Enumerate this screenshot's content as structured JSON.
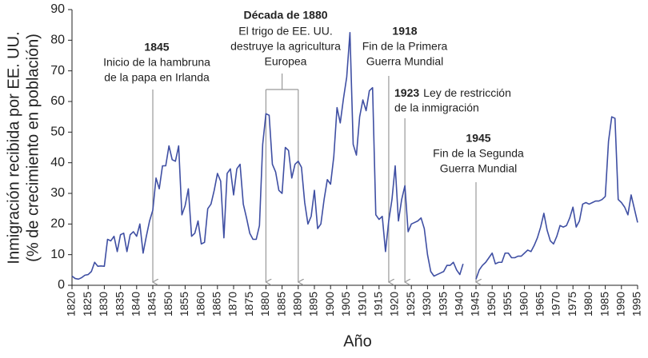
{
  "chart_data": {
    "type": "line",
    "y_label": [
      "Inmigración recibida por EE. UU.",
      "(% de crecimiento en población)"
    ],
    "x_label": "Año",
    "x": [
      1820,
      1821,
      1822,
      1823,
      1824,
      1825,
      1826,
      1827,
      1828,
      1829,
      1830,
      1831,
      1832,
      1833,
      1834,
      1835,
      1836,
      1837,
      1838,
      1839,
      1840,
      1841,
      1842,
      1843,
      1844,
      1845,
      1846,
      1847,
      1848,
      1849,
      1850,
      1851,
      1852,
      1853,
      1854,
      1855,
      1856,
      1857,
      1858,
      1859,
      1860,
      1861,
      1862,
      1863,
      1864,
      1865,
      1866,
      1867,
      1868,
      1869,
      1870,
      1871,
      1872,
      1873,
      1874,
      1875,
      1876,
      1877,
      1878,
      1879,
      1880,
      1881,
      1882,
      1883,
      1884,
      1885,
      1886,
      1887,
      1888,
      1889,
      1890,
      1891,
      1892,
      1893,
      1894,
      1895,
      1896,
      1897,
      1898,
      1899,
      1900,
      1901,
      1902,
      1903,
      1904,
      1905,
      1906,
      1907,
      1908,
      1909,
      1910,
      1911,
      1912,
      1913,
      1914,
      1915,
      1916,
      1917,
      1918,
      1919,
      1920,
      1921,
      1922,
      1923,
      1924,
      1925,
      1926,
      1927,
      1928,
      1929,
      1930,
      1931,
      1932,
      1933,
      1934,
      1935,
      1936,
      1937,
      1938,
      1939,
      1940,
      1941,
      1942,
      1943,
      1944,
      1945,
      1946,
      1947,
      1948,
      1949,
      1950,
      1951,
      1952,
      1953,
      1954,
      1955,
      1956,
      1957,
      1958,
      1959,
      1960,
      1961,
      1962,
      1963,
      1964,
      1965,
      1966,
      1967,
      1968,
      1969,
      1970,
      1971,
      1972,
      1973,
      1974,
      1975,
      1976,
      1977,
      1978,
      1979,
      1980,
      1981,
      1982,
      1983,
      1984,
      1985,
      1986,
      1987,
      1988,
      1989,
      1990,
      1991,
      1992,
      1993,
      1994,
      1995
    ],
    "values": [
      3,
      2.2,
      2,
      2.5,
      3.3,
      3.5,
      4.5,
      7.5,
      6.2,
      6.3,
      6.2,
      15,
      14.5,
      16,
      11,
      16.5,
      17,
      11,
      16.5,
      17.5,
      16,
      20,
      10.5,
      16,
      21,
      24.5,
      35,
      31.5,
      39,
      39,
      45.5,
      41,
      40.5,
      45.5,
      23,
      26,
      31.5,
      16,
      17,
      21,
      13.5,
      14,
      25,
      26.5,
      31,
      36.5,
      34,
      15.5,
      36.5,
      38,
      29.5,
      38,
      39.5,
      26.5,
      22,
      17,
      15,
      15,
      19.5,
      46,
      56,
      55.5,
      39.5,
      37,
      31,
      30,
      45,
      44,
      35,
      39.5,
      40.5,
      38.5,
      27,
      20,
      22.5,
      31,
      18.5,
      20,
      28,
      34.5,
      33,
      42,
      58,
      53,
      61,
      68,
      82.5,
      46,
      42.5,
      55,
      60.5,
      57,
      63.5,
      64.5,
      23,
      21.5,
      22.5,
      11,
      21,
      28,
      39,
      21,
      28,
      32.5,
      17.5,
      20,
      20.5,
      21,
      22,
      18.5,
      10,
      4.5,
      3,
      3.5,
      4,
      4.5,
      6.5,
      6.5,
      7.5,
      5,
      3.5,
      7,
      null,
      null,
      null,
      2,
      5,
      6.5,
      7.5,
      9,
      10.5,
      7,
      7.5,
      7.5,
      10.5,
      10.5,
      9,
      9,
      9.5,
      9.5,
      10.5,
      11.5,
      11,
      13,
      15.5,
      19,
      23.5,
      18,
      14.5,
      13.5,
      16,
      19.5,
      19,
      19.5,
      22,
      25.5,
      19,
      21,
      26.5,
      27,
      26.5,
      27,
      27.5,
      27.5,
      28,
      29,
      47,
      55,
      54.5,
      28,
      27,
      25.5,
      23,
      29.5,
      25,
      20.5
    ],
    "color": "#3f4fa3",
    "xlim": [
      1820,
      1995
    ],
    "xticks": [
      1820,
      1825,
      1830,
      1835,
      1840,
      1845,
      1850,
      1855,
      1860,
      1865,
      1870,
      1875,
      1880,
      1885,
      1890,
      1895,
      1900,
      1905,
      1910,
      1915,
      1920,
      1925,
      1930,
      1935,
      1940,
      1945,
      1950,
      1955,
      1960,
      1965,
      1970,
      1975,
      1980,
      1985,
      1990,
      1995
    ],
    "ylim": [
      0,
      90
    ],
    "yticks": [
      0,
      10,
      20,
      30,
      40,
      50,
      60,
      70,
      80,
      90
    ],
    "grid": false,
    "annotations": [
      {
        "year": "1845",
        "text": [
          "Inicio de la hambruna",
          "de la papa en Irlanda"
        ],
        "x": [
          1845
        ]
      },
      {
        "year": "Década de 1880",
        "text": [
          "El trigo de EE. UU.",
          "destruye la agricultura",
          "Europea"
        ],
        "x": [
          1880,
          1890
        ]
      },
      {
        "year": "1918",
        "text": [
          "Fin de la Primera",
          "Guerra Mundial"
        ],
        "x": [
          1918
        ]
      },
      {
        "year": "1923",
        "text": [
          "Ley de restricción",
          "de la inmigración"
        ],
        "x": [
          1923
        ]
      },
      {
        "year": "1945",
        "text": [
          "Fin de la Segunda",
          "Guerra Mundial"
        ],
        "x": [
          1945
        ]
      }
    ]
  }
}
